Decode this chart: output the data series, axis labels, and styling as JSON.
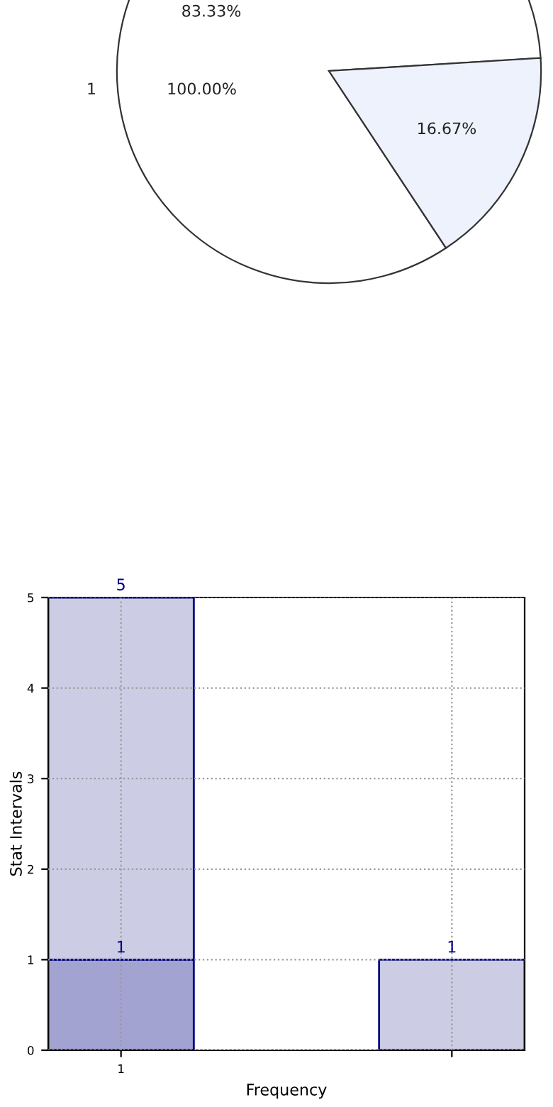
{
  "chart_data": [
    {
      "type": "pie",
      "categories": [
        null,
        null
      ],
      "values": [
        83.33,
        16.67
      ],
      "colors": [
        "#ffffff",
        "#eef2fc"
      ],
      "value_labels": [
        "83.33%",
        "16.67%"
      ],
      "annotations": [
        "1",
        "100.00%"
      ]
    },
    {
      "type": "bar",
      "categories": [
        "1",
        null
      ],
      "xlabel": "Frequency",
      "ylabel": "Stat Intervals",
      "ylim": [
        0,
        5
      ],
      "yticks": [
        0,
        1,
        2,
        3,
        4,
        5
      ],
      "grid": true,
      "stacked": true,
      "totals": [
        "5",
        "1"
      ],
      "series": [
        {
          "color": "#a3a3d1",
          "values": [
            1,
            null
          ],
          "value_labels": [
            "1",
            null
          ]
        },
        {
          "color": "#ccccE4",
          "values": [
            4,
            1
          ]
        }
      ]
    }
  ]
}
